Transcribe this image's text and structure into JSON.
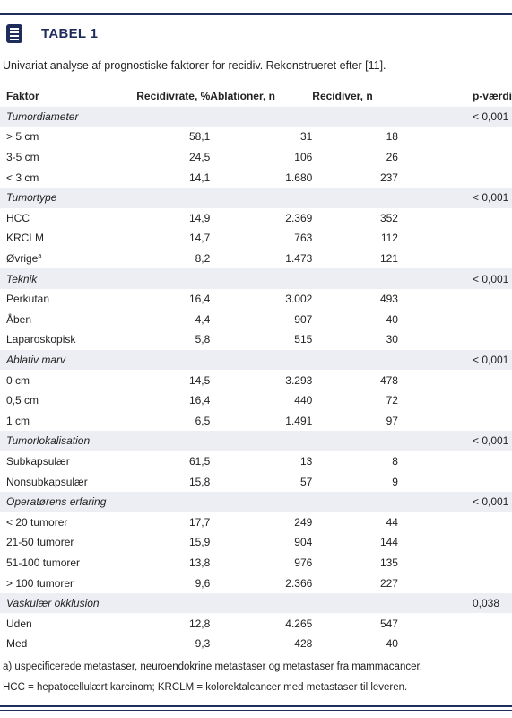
{
  "header": {
    "title": "TABEL 1",
    "caption": "Univariat analyse af prognostiske faktorer for recidiv. Rekonstrueret efter [11]."
  },
  "table": {
    "columns": [
      "Faktor",
      "Recidivrate, %",
      "Ablationer, n",
      "Recidiver, n",
      "p-værdi"
    ],
    "groups": [
      {
        "title": "Tumordiameter",
        "p": "< 0,001",
        "rows": [
          [
            "> 5 cm",
            "58,1",
            "31",
            "18"
          ],
          [
            "3-5 cm",
            "24,5",
            "106",
            "26"
          ],
          [
            "< 3 cm",
            "14,1",
            "1.680",
            "237"
          ]
        ]
      },
      {
        "title": "Tumortype",
        "p": "< 0,001",
        "rows": [
          [
            "HCC",
            "14,9",
            "2.369",
            "352"
          ],
          [
            "KRCLM",
            "14,7",
            "763",
            "112"
          ],
          [
            "Øvrige",
            "8,2",
            "1.473",
            "121",
            "a"
          ]
        ]
      },
      {
        "title": "Teknik",
        "p": "< 0,001",
        "rows": [
          [
            "Perkutan",
            "16,4",
            "3.002",
            "493"
          ],
          [
            "Åben",
            "4,4",
            "907",
            "40"
          ],
          [
            "Laparoskopisk",
            "5,8",
            "515",
            "30"
          ]
        ]
      },
      {
        "title": "Ablativ marv",
        "p": "< 0,001",
        "rows": [
          [
            "0 cm",
            "14,5",
            "3.293",
            "478"
          ],
          [
            "0,5 cm",
            "16,4",
            "440",
            "72"
          ],
          [
            "1 cm",
            "6,5",
            "1.491",
            "97"
          ]
        ]
      },
      {
        "title": "Tumorlokalisation",
        "p": "< 0,001",
        "rows": [
          [
            "Subkapsulær",
            "61,5",
            "13",
            "8"
          ],
          [
            "Nonsubkapsulær",
            "15,8",
            "57",
            "9"
          ]
        ]
      },
      {
        "title": "Operatørens erfaring",
        "p": "< 0,001",
        "rows": [
          [
            "< 20 tumorer",
            "17,7",
            "249",
            "44"
          ],
          [
            "21-50 tumorer",
            "15,9",
            "904",
            "144"
          ],
          [
            "51-100 tumorer",
            "13,8",
            "976",
            "135"
          ],
          [
            "> 100 tumorer",
            "9,6",
            "2.366",
            "227"
          ]
        ]
      },
      {
        "title": "Vaskulær okklusion",
        "p": "0,038",
        "rows": [
          [
            "Uden",
            "12,8",
            "4.265",
            "547"
          ],
          [
            "Med",
            "9,3",
            "428",
            "40"
          ]
        ]
      }
    ]
  },
  "footnotes": [
    "a) uspecificerede metastaser, neuroendokrine metastaser og metastaser fra mammacancer.",
    "HCC = hepatocellulært karcinom; KRCLM = kolorektalcancer med metastaser til leveren."
  ]
}
